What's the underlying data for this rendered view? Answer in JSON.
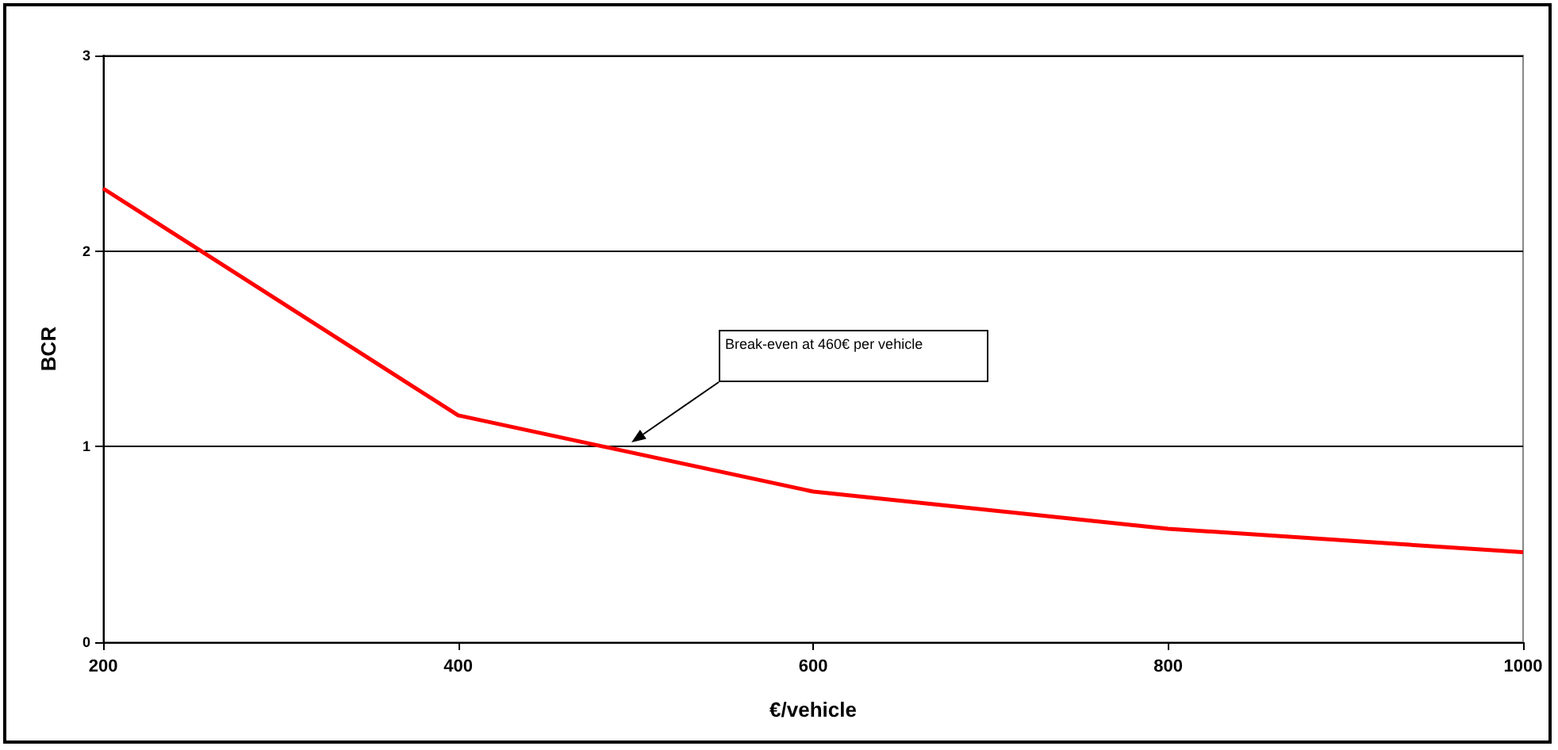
{
  "chart_data": {
    "type": "line",
    "xlabel": "€/vehicle",
    "ylabel": "BCR",
    "x": [
      200,
      400,
      600,
      800,
      1000
    ],
    "series": [
      {
        "color": "#ff0000",
        "values": [
          2.32,
          1.16,
          0.77,
          0.58,
          0.46
        ]
      }
    ],
    "xlim": [
      200,
      1000
    ],
    "xticks": [
      200,
      400,
      600,
      800,
      1000
    ],
    "ylim": [
      0,
      3
    ],
    "yticks": [
      0,
      1,
      2,
      3
    ],
    "grid": "y",
    "marker": "none",
    "line_style": "solid",
    "annotations": [
      "Break-even at 460€ per vehicle"
    ]
  }
}
